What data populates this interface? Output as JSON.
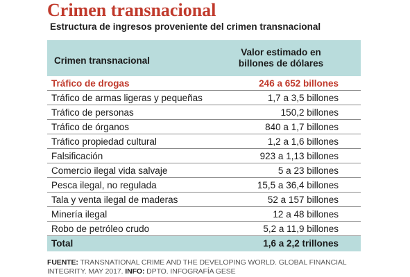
{
  "title": "Crimen transnacional",
  "subtitle": "Estructura de ingresos proveniente del crimen transnacional",
  "table": {
    "col_name": "Crimen transnacional",
    "col_value_line1": "Valor estimado en",
    "col_value_line2": "billones de dólares",
    "rows": [
      {
        "name": "Tráfico de drogas",
        "value": "246 a 652 billones"
      },
      {
        "name": "Tráfico de armas ligeras y pequeñas",
        "value": "1,7 a 3,5 billones"
      },
      {
        "name": "Tráfico de personas",
        "value": "150,2 billones"
      },
      {
        "name": "Tráfico  de órganos",
        "value": "840 a 1,7 billones"
      },
      {
        "name": "Tráfico  propiedad cultural",
        "value": "1,2 a 1,6 billones"
      },
      {
        "name": "Falsificación",
        "value": "923 a 1,13 billones"
      },
      {
        "name": "Comercio ilegal vida salvaje",
        "value": "5 a 23 billones"
      },
      {
        "name": "Pesca ilegal, no regulada",
        "value": "15,5 a 36,4 billones"
      },
      {
        "name": "Tala y venta ilegal de maderas",
        "value": "52 a 157 billones"
      },
      {
        "name": "Minería ilegal",
        "value": "12 a 48 billones"
      },
      {
        "name": "Robo de petróleo crudo",
        "value": "5,2 a 11,9 billones"
      }
    ],
    "total_label": "Total",
    "total_value": "1,6 a 2,2 trillones"
  },
  "footer": {
    "source_label": "FUENTE:",
    "source_text": " TRANSNATIONAL CRIME AND THE DEVELOPING WORLD. GLOBAL FINANCIAL INTEGRITY. MAY 2017. ",
    "info_label": "INFO:",
    "info_text": " DPTO. INFOGRAFÍA GESE"
  },
  "colors": {
    "accent": "#c0392b",
    "header_bg": "#b9dcdc"
  }
}
